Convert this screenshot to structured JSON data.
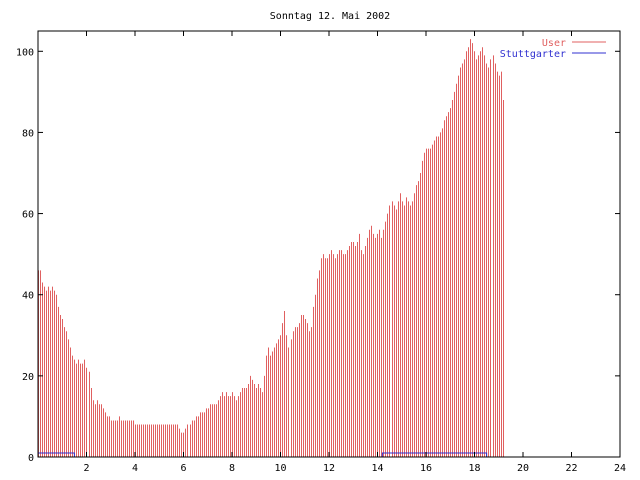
{
  "chart_data": {
    "type": "bar",
    "title": "Sonntag 12. Mai 2002",
    "xlabel": "",
    "ylabel": "",
    "xlim": [
      0,
      24
    ],
    "ylim": [
      0,
      105
    ],
    "x_ticks": [
      2,
      4,
      6,
      8,
      10,
      12,
      14,
      16,
      18,
      20,
      22,
      24
    ],
    "y_ticks": [
      0,
      20,
      40,
      60,
      80,
      100
    ],
    "grid": false,
    "legend_position": "top-right",
    "legend": [
      "User",
      "Stuttgarter"
    ],
    "colors": {
      "User": "#e06060",
      "Stuttgarter": "#3030d0",
      "axis": "#000000"
    },
    "series": [
      {
        "name": "User",
        "style": "impulses",
        "interval_hours": 0.0833,
        "values": [
          46,
          46,
          43,
          42,
          41,
          42,
          41,
          42,
          41,
          40,
          37,
          35,
          34,
          32,
          31,
          29,
          27,
          25,
          24,
          23,
          24,
          23,
          23,
          24,
          22,
          21,
          17,
          14,
          13,
          14,
          13,
          13,
          12,
          11,
          10,
          10,
          9,
          9,
          9,
          9,
          10,
          9,
          9,
          9,
          9,
          9,
          9,
          9,
          8,
          8,
          8,
          8,
          8,
          8,
          8,
          8,
          8,
          8,
          8,
          8,
          8,
          8,
          8,
          8,
          8,
          8,
          8,
          8,
          8,
          8,
          7,
          6,
          6,
          7,
          8,
          8,
          9,
          9,
          10,
          10,
          11,
          11,
          11,
          12,
          12,
          13,
          13,
          13,
          13,
          14,
          15,
          16,
          15,
          16,
          15,
          15,
          16,
          15,
          14,
          15,
          16,
          17,
          17,
          17,
          18,
          20,
          19,
          18,
          17,
          18,
          17,
          16,
          20,
          25,
          27,
          25,
          26,
          27,
          28,
          29,
          30,
          33,
          36,
          30,
          27,
          29,
          31,
          32,
          32,
          33,
          35,
          35,
          34,
          33,
          31,
          32,
          37,
          40,
          44,
          46,
          49,
          50,
          49,
          49,
          50,
          51,
          50,
          49,
          50,
          51,
          51,
          50,
          50,
          51,
          52,
          53,
          53,
          52,
          53,
          55,
          51,
          50,
          52,
          54,
          56,
          57,
          55,
          54,
          55,
          56,
          54,
          56,
          58,
          60,
          62,
          63,
          62,
          61,
          63,
          65,
          63,
          62,
          64,
          63,
          62,
          63,
          65,
          67,
          68,
          70,
          73,
          75,
          76,
          76,
          76,
          77,
          78,
          79,
          79,
          80,
          81,
          83,
          84,
          85,
          86,
          88,
          90,
          92,
          94,
          96,
          97,
          98,
          100,
          101,
          103,
          102,
          100,
          98,
          99,
          100,
          101,
          99,
          97,
          96,
          98,
          99,
          97,
          95,
          94,
          95,
          88
        ]
      },
      {
        "name": "Stuttgarter",
        "style": "line",
        "segments": [
          {
            "x_start": 0.0,
            "x_end": 1.5,
            "value": 1
          },
          {
            "x_start": 1.5,
            "x_end": 14.2,
            "value": 0
          },
          {
            "x_start": 14.2,
            "x_end": 18.5,
            "value": 1
          },
          {
            "x_start": 18.5,
            "x_end": 24.0,
            "value": 0
          }
        ]
      }
    ]
  }
}
